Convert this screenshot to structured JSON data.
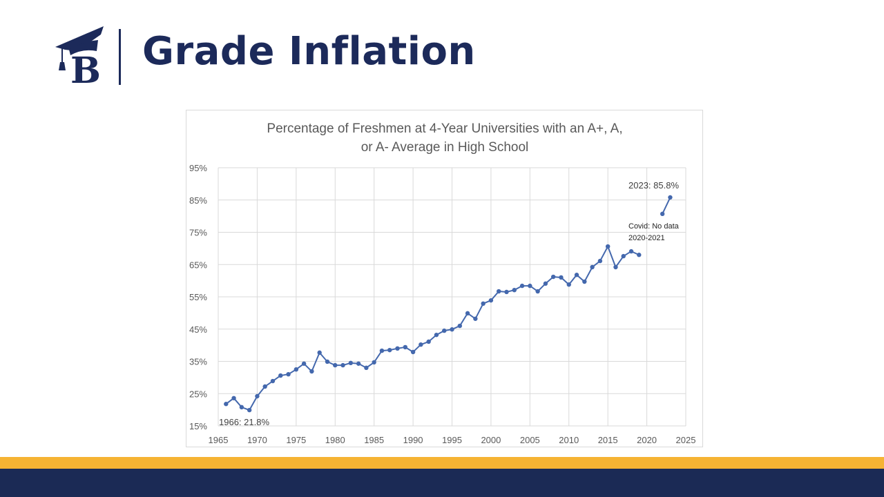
{
  "header": {
    "title": "Grade Inflation",
    "logo_letter": "B"
  },
  "colors": {
    "navy": "#1c2a5a",
    "gold": "#f6b333",
    "series": "#4468ad"
  },
  "chart_data": {
    "type": "line",
    "title_lines": [
      "Percentage of Freshmen at 4-Year Universities with an A+, A,",
      "or A- Average in High School"
    ],
    "xlabel": "",
    "ylabel": "",
    "xlim": [
      1965,
      2025
    ],
    "ylim": [
      15,
      95
    ],
    "x_ticks": [
      1965,
      1970,
      1975,
      1980,
      1985,
      1990,
      1995,
      2000,
      2005,
      2010,
      2015,
      2020,
      2025
    ],
    "y_ticks": [
      "15%",
      "25%",
      "35%",
      "45%",
      "55%",
      "65%",
      "75%",
      "85%",
      "95%"
    ],
    "grid": true,
    "segments": [
      {
        "x": [
          1966,
          1967,
          1968,
          1969,
          1970,
          1971,
          1972,
          1973,
          1974,
          1975,
          1976,
          1977,
          1978,
          1979,
          1980,
          1981,
          1982,
          1983,
          1984,
          1985,
          1986,
          1987,
          1988,
          1989,
          1990,
          1991,
          1992,
          1993,
          1994,
          1995,
          1996,
          1997,
          1998,
          1999,
          2000,
          2001,
          2002,
          2003,
          2004,
          2005,
          2006,
          2007,
          2008,
          2009,
          2010,
          2011,
          2012,
          2013,
          2014,
          2015,
          2016,
          2017,
          2018,
          2019
        ],
        "y": [
          21.8,
          23.6,
          20.8,
          19.9,
          24.2,
          27.2,
          28.9,
          30.6,
          31.0,
          32.5,
          34.3,
          31.9,
          37.7,
          34.9,
          33.8,
          33.8,
          34.5,
          34.3,
          33.0,
          34.7,
          38.3,
          38.5,
          39.0,
          39.4,
          37.9,
          40.2,
          41.1,
          43.2,
          44.5,
          44.9,
          46.0,
          49.9,
          48.2,
          52.9,
          53.9,
          56.7,
          56.5,
          57.1,
          58.4,
          58.4,
          56.7,
          59.1,
          61.2,
          61.0,
          58.8,
          61.8,
          59.7,
          64.2,
          66.1,
          70.6,
          64.2,
          67.6,
          69.1,
          68.0
        ]
      },
      {
        "x": [
          2022,
          2023
        ],
        "y": [
          80.7,
          85.8
        ]
      }
    ],
    "annotations": {
      "start": "1966: 21.8%",
      "end": "2023: 85.8%",
      "covid_line1": "Covid: No data",
      "covid_line2": "2020-2021"
    }
  }
}
